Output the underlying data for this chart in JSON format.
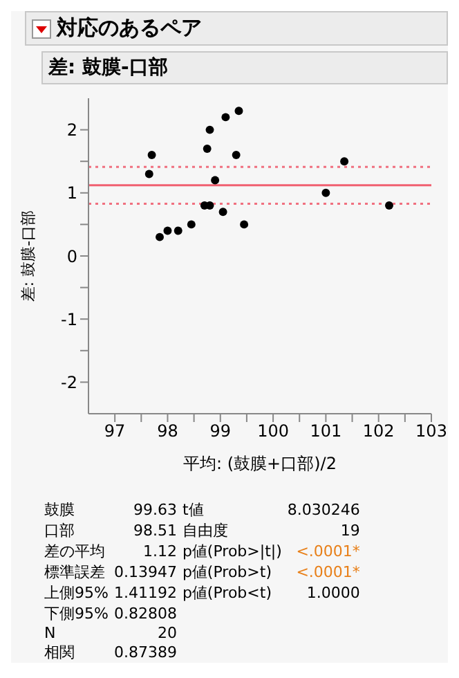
{
  "chart_data": {
    "type": "scatter",
    "title": "対応のあるペア",
    "subtitle": "差: 鼓膜-口部",
    "xlabel": "平均: (鼓膜+口部)/2",
    "ylabel": "差: 鼓膜-口部",
    "x": [
      97.65,
      97.7,
      97.85,
      98.0,
      98.2,
      98.45,
      98.7,
      98.8,
      98.75,
      98.8,
      98.9,
      99.05,
      99.1,
      99.3,
      99.35,
      99.45,
      101.0,
      101.35,
      102.2
    ],
    "series": [
      {
        "color": "#000000",
        "values": [
          1.3,
          1.6,
          0.3,
          0.4,
          0.4,
          0.5,
          0.8,
          0.8,
          1.7,
          2.0,
          1.2,
          0.7,
          2.2,
          1.6,
          2.3,
          0.5,
          1.0,
          1.5,
          0.8
        ]
      }
    ],
    "marker": "circle",
    "xlim": [
      96.5,
      103
    ],
    "ylim": [
      -2.5,
      2.5
    ],
    "xticks": [
      97,
      {
        "value": 97.5,
        "label": null
      },
      98,
      {
        "value": 98.5,
        "label": null
      },
      99,
      {
        "value": 99.5,
        "label": null
      },
      100,
      {
        "value": 100.5,
        "label": null
      },
      101,
      {
        "value": 101.5,
        "label": null
      },
      102,
      {
        "value": 102.5,
        "label": null
      },
      103
    ],
    "yticks": [
      -2,
      {
        "value": -1.5,
        "label": null
      },
      -1,
      {
        "value": -0.5,
        "label": null
      },
      0,
      {
        "value": 0.5,
        "label": null
      },
      1,
      {
        "value": 1.5,
        "label": null
      },
      2
    ],
    "ref_lines": [
      {
        "axis": "y",
        "value": 1.12,
        "color": "#f06070",
        "line_style": "solid"
      },
      {
        "axis": "y",
        "value": 1.41192,
        "color": "#f07080",
        "line_style": "dotted"
      },
      {
        "axis": "y",
        "value": 0.82808,
        "color": "#f07080",
        "line_style": "dotted"
      }
    ],
    "annotations": [
      "鼓膜",
      "99.63",
      "口部",
      "98.51",
      "差の平均",
      "1.12",
      "標準誤差",
      "0.13947",
      "上側95%",
      "1.41192",
      "下側95%",
      "0.82808",
      "N",
      "20",
      "相関",
      "0.87389",
      "t値",
      "8.030246",
      "自由度",
      "19",
      "p値(Prob>|t|)",
      "<.0001*",
      "p値(Prob>t)",
      "<.0001*",
      "p値(Prob<t)",
      "1.0000"
    ],
    "grid": false
  }
}
